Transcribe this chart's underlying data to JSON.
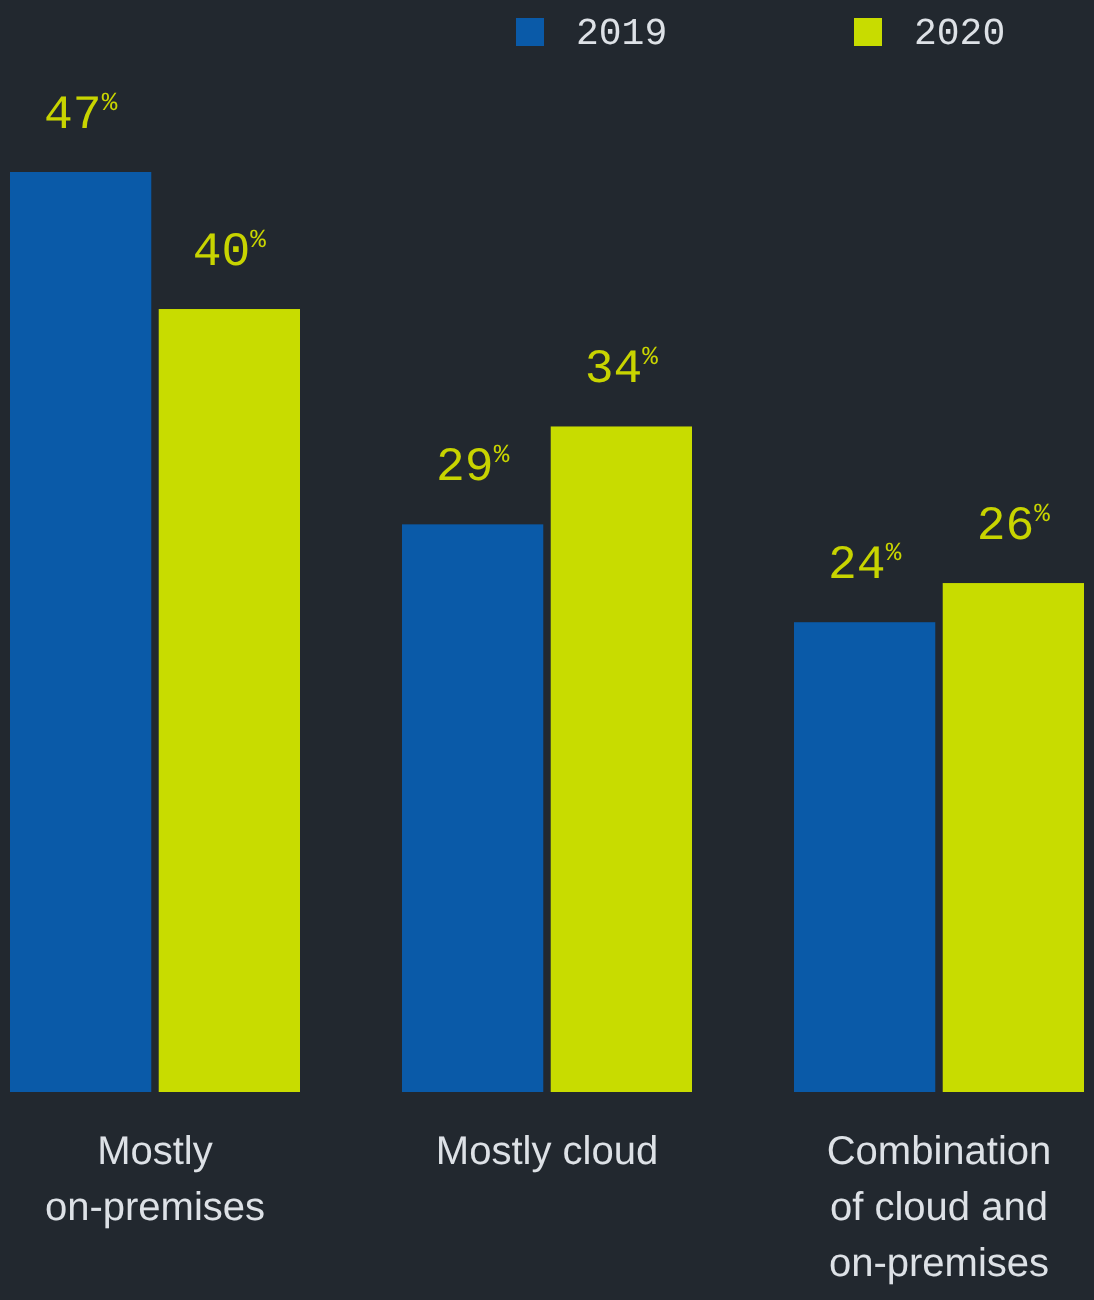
{
  "chart_data": {
    "type": "bar",
    "categories": [
      "Mostly on-premises",
      "Mostly cloud",
      "Combination of cloud and on-premises"
    ],
    "series": [
      {
        "name": "2019",
        "color": "#0a5aa8",
        "values": [
          47,
          29,
          24
        ],
        "value_labels": [
          "47$^{%}$",
          "29$^{%}$",
          "24$^{%}$"
        ]
      },
      {
        "name": "2020",
        "color": "#c8dc00",
        "values": [
          40,
          34,
          26
        ],
        "value_labels": [
          "40$^{%}$",
          "34$^{%}$",
          "26$^{%}$"
        ]
      }
    ],
    "legend": "top right"
  }
}
